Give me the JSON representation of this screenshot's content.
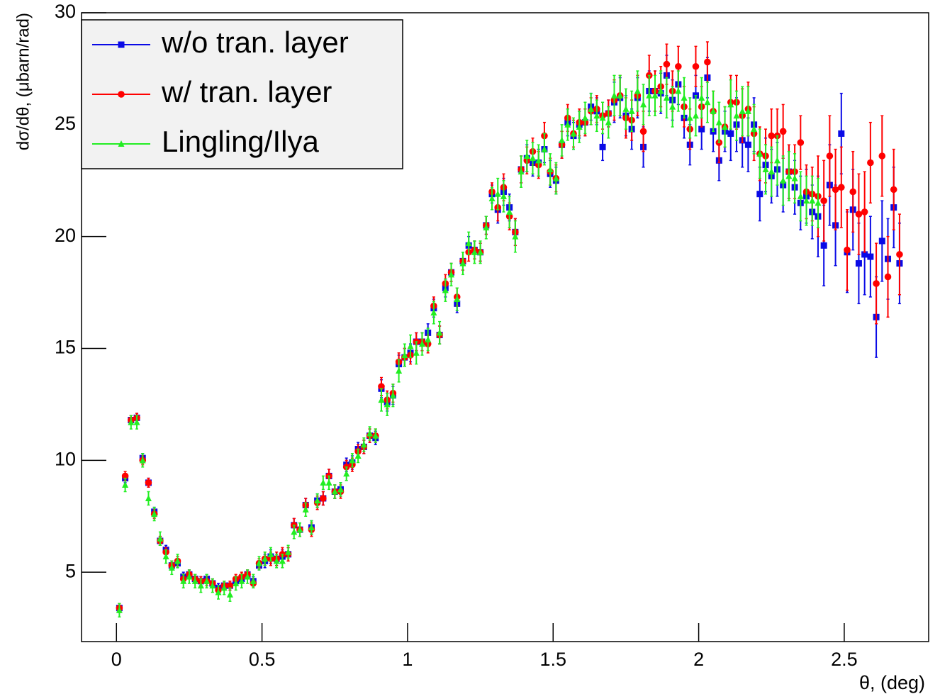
{
  "chart_data": {
    "type": "scatter",
    "x_label": "θ, (deg)",
    "y_label": "dσ/dθ, (μbarn/rad)",
    "xlim": [
      -0.12,
      2.79
    ],
    "ylim": [
      1.9,
      30
    ],
    "xticks": [
      0,
      0.5,
      1,
      1.5,
      2,
      2.5
    ],
    "yticks": [
      5,
      10,
      15,
      20,
      25,
      30
    ],
    "legend": "top-left",
    "x": [
      0.01,
      0.03,
      0.05,
      0.07,
      0.09,
      0.11,
      0.13,
      0.15,
      0.17,
      0.19,
      0.21,
      0.23,
      0.25,
      0.27,
      0.29,
      0.31,
      0.33,
      0.35,
      0.37,
      0.39,
      0.41,
      0.43,
      0.45,
      0.47,
      0.49,
      0.51,
      0.53,
      0.55,
      0.57,
      0.59,
      0.61,
      0.63,
      0.65,
      0.67,
      0.69,
      0.71,
      0.73,
      0.75,
      0.77,
      0.79,
      0.81,
      0.83,
      0.85,
      0.87,
      0.89,
      0.91,
      0.93,
      0.95,
      0.97,
      0.99,
      1.01,
      1.03,
      1.05,
      1.07,
      1.09,
      1.11,
      1.13,
      1.15,
      1.17,
      1.19,
      1.21,
      1.23,
      1.25,
      1.27,
      1.29,
      1.31,
      1.33,
      1.35,
      1.37,
      1.39,
      1.41,
      1.43,
      1.45,
      1.47,
      1.49,
      1.51,
      1.53,
      1.55,
      1.57,
      1.59,
      1.61,
      1.63,
      1.65,
      1.67,
      1.69,
      1.71,
      1.73,
      1.75,
      1.77,
      1.79,
      1.81,
      1.83,
      1.85,
      1.87,
      1.89,
      1.91,
      1.93,
      1.95,
      1.97,
      1.99,
      2.01,
      2.03,
      2.05,
      2.07,
      2.09,
      2.11,
      2.13,
      2.15,
      2.17,
      2.19,
      2.21,
      2.23,
      2.25,
      2.27,
      2.29,
      2.31,
      2.33,
      2.35,
      2.37,
      2.39,
      2.41,
      2.43,
      2.45,
      2.47,
      2.49,
      2.51,
      2.53,
      2.55,
      2.57,
      2.59,
      2.61,
      2.63,
      2.65,
      2.67,
      2.69
    ],
    "series": [
      {
        "name": "w/o tran. layer",
        "color": "#0a0ae6",
        "marker": "square",
        "values": [
          3.4,
          9.2,
          11.8,
          11.9,
          10.1,
          9.0,
          7.7,
          6.4,
          6.0,
          5.3,
          5.4,
          4.8,
          4.9,
          4.7,
          4.6,
          4.7,
          4.5,
          4.3,
          4.4,
          4.4,
          4.6,
          4.7,
          4.9,
          4.6,
          5.3,
          5.5,
          5.7,
          5.6,
          5.7,
          5.8,
          7.1,
          6.9,
          8.0,
          7.0,
          8.2,
          8.3,
          9.3,
          8.6,
          8.7,
          9.8,
          9.9,
          10.5,
          10.6,
          11.1,
          11.0,
          13.2,
          12.6,
          12.9,
          14.3,
          14.6,
          14.8,
          15.3,
          15.3,
          15.7,
          16.8,
          15.6,
          17.7,
          18.4,
          17.0,
          18.9,
          19.6,
          19.4,
          19.3,
          20.5,
          21.9,
          21.2,
          22.0,
          21.3,
          20.2,
          23.0,
          23.5,
          23.3,
          23.3,
          23.9,
          22.8,
          22.5,
          24.1,
          25.1,
          24.5,
          25.0,
          25.1,
          25.8,
          25.6,
          24.0,
          25.5,
          26.0,
          26.2,
          25.4,
          24.8,
          26.2,
          24.0,
          26.5,
          26.5,
          26.4,
          27.2,
          26.1,
          26.8,
          25.3,
          24.1,
          26.3,
          24.8,
          27.1,
          24.7,
          23.4,
          24.7,
          24.6,
          25.0,
          24.3,
          24.1,
          25.0,
          21.9,
          23.2,
          22.7,
          23.0,
          22.3,
          22.9,
          22.2,
          21.5,
          21.8,
          21.1,
          20.9,
          19.6,
          22.3,
          20.5,
          24.6,
          19.3,
          21.2,
          18.8,
          19.2,
          19.1,
          16.4,
          19.8,
          19.0,
          21.3,
          18.8
        ],
        "errors": [
          0.2,
          0.2,
          0.2,
          0.2,
          0.2,
          0.2,
          0.2,
          0.2,
          0.2,
          0.2,
          0.2,
          0.2,
          0.2,
          0.2,
          0.2,
          0.2,
          0.2,
          0.2,
          0.2,
          0.2,
          0.2,
          0.2,
          0.2,
          0.2,
          0.2,
          0.3,
          0.3,
          0.3,
          0.3,
          0.3,
          0.3,
          0.3,
          0.3,
          0.3,
          0.3,
          0.3,
          0.3,
          0.3,
          0.3,
          0.3,
          0.3,
          0.3,
          0.3,
          0.3,
          0.3,
          0.4,
          0.4,
          0.4,
          0.4,
          0.4,
          0.4,
          0.4,
          0.4,
          0.4,
          0.4,
          0.4,
          0.4,
          0.4,
          0.4,
          0.4,
          0.4,
          0.4,
          0.4,
          0.4,
          0.4,
          0.6,
          0.6,
          0.6,
          0.6,
          0.6,
          0.6,
          0.6,
          0.6,
          0.6,
          0.6,
          0.6,
          0.6,
          0.6,
          0.6,
          0.6,
          0.6,
          0.6,
          0.6,
          0.6,
          0.6,
          0.9,
          0.9,
          0.9,
          0.9,
          0.9,
          0.9,
          0.9,
          0.9,
          0.9,
          0.9,
          0.9,
          0.9,
          0.9,
          0.9,
          0.9,
          0.9,
          0.9,
          0.9,
          0.9,
          0.9,
          1.2,
          1.2,
          1.2,
          1.2,
          1.2,
          1.2,
          1.2,
          1.2,
          1.2,
          1.2,
          1.2,
          1.2,
          1.2,
          1.2,
          1.2,
          1.8,
          1.8,
          1.8,
          1.8,
          1.8,
          1.8,
          1.8,
          1.8,
          1.8,
          1.8,
          1.8,
          1.8,
          1.8,
          1.8,
          1.8
        ]
      },
      {
        "name": "w/ tran. layer",
        "color": "#ff0000",
        "marker": "circle",
        "values": [
          3.4,
          9.3,
          11.8,
          11.9,
          10.0,
          9.0,
          7.6,
          6.4,
          5.9,
          5.3,
          5.5,
          4.7,
          4.9,
          4.7,
          4.6,
          4.6,
          4.5,
          4.2,
          4.4,
          4.4,
          4.7,
          4.8,
          4.9,
          4.5,
          5.4,
          5.6,
          5.6,
          5.6,
          5.8,
          5.8,
          7.1,
          6.9,
          8.0,
          6.9,
          8.1,
          8.3,
          9.3,
          8.6,
          8.6,
          9.7,
          9.8,
          10.4,
          10.6,
          11.1,
          11.1,
          13.3,
          12.7,
          13.0,
          14.4,
          14.6,
          14.7,
          15.3,
          15.3,
          15.2,
          16.9,
          15.6,
          17.9,
          18.4,
          17.3,
          18.9,
          19.3,
          19.4,
          19.3,
          20.5,
          22.0,
          21.3,
          22.2,
          20.9,
          20.2,
          23.0,
          23.4,
          23.8,
          23.2,
          24.5,
          22.9,
          22.6,
          24.1,
          25.3,
          24.6,
          25.1,
          25.1,
          25.6,
          25.7,
          25.4,
          25.5,
          26.1,
          26.3,
          25.3,
          25.2,
          26.3,
          24.7,
          27.2,
          26.5,
          26.7,
          27.7,
          26.5,
          27.6,
          25.8,
          24.8,
          27.6,
          25.8,
          27.8,
          25.6,
          24.2,
          24.9,
          26.0,
          26.0,
          25.4,
          25.7,
          24.6,
          23.7,
          23.6,
          24.5,
          24.5,
          24.7,
          22.9,
          22.9,
          24.2,
          22.0,
          21.9,
          21.8,
          21.6,
          23.6,
          22.1,
          22.2,
          19.4,
          22.0,
          21.0,
          21.1,
          23.3,
          17.9,
          23.6,
          18.2,
          22.1,
          19.2
        ],
        "errors": [
          0.2,
          0.2,
          0.2,
          0.2,
          0.2,
          0.2,
          0.2,
          0.2,
          0.2,
          0.2,
          0.2,
          0.2,
          0.2,
          0.2,
          0.2,
          0.2,
          0.2,
          0.2,
          0.2,
          0.2,
          0.2,
          0.2,
          0.2,
          0.2,
          0.2,
          0.3,
          0.3,
          0.3,
          0.3,
          0.3,
          0.3,
          0.3,
          0.3,
          0.3,
          0.3,
          0.3,
          0.3,
          0.3,
          0.3,
          0.3,
          0.3,
          0.3,
          0.3,
          0.3,
          0.3,
          0.4,
          0.4,
          0.4,
          0.4,
          0.4,
          0.4,
          0.4,
          0.4,
          0.4,
          0.4,
          0.4,
          0.4,
          0.4,
          0.4,
          0.4,
          0.4,
          0.4,
          0.4,
          0.4,
          0.4,
          0.6,
          0.6,
          0.6,
          0.6,
          0.6,
          0.6,
          0.6,
          0.6,
          0.6,
          0.6,
          0.6,
          0.6,
          0.6,
          0.6,
          0.6,
          0.6,
          0.6,
          0.6,
          0.6,
          0.6,
          0.9,
          0.9,
          0.9,
          0.9,
          0.9,
          0.9,
          0.9,
          0.9,
          0.9,
          0.9,
          0.9,
          0.9,
          0.9,
          0.9,
          0.9,
          0.9,
          0.9,
          0.9,
          0.9,
          0.9,
          1.2,
          1.2,
          1.2,
          1.2,
          1.2,
          1.2,
          1.2,
          1.2,
          1.2,
          1.2,
          1.2,
          1.2,
          1.2,
          1.2,
          1.2,
          1.8,
          1.8,
          1.8,
          1.8,
          1.8,
          1.8,
          1.8,
          1.8,
          1.8,
          1.8,
          1.8,
          1.8,
          1.8,
          1.8,
          1.8
        ]
      },
      {
        "name": "Lingling/Ilya",
        "color": "#22ee22",
        "marker": "triangle",
        "values": [
          3.3,
          8.9,
          11.7,
          11.7,
          10.0,
          8.3,
          7.6,
          6.5,
          5.7,
          5.2,
          5.5,
          4.6,
          4.8,
          4.6,
          4.4,
          4.6,
          4.4,
          4.1,
          4.3,
          4.0,
          4.5,
          4.6,
          4.8,
          4.6,
          5.4,
          5.6,
          5.8,
          5.5,
          5.5,
          5.9,
          6.8,
          6.9,
          7.8,
          7.0,
          8.2,
          9.0,
          9.0,
          8.6,
          8.7,
          9.4,
          10.0,
          10.2,
          10.7,
          11.2,
          11.1,
          12.7,
          12.5,
          12.9,
          14.0,
          14.7,
          15.1,
          14.8,
          15.2,
          15.4,
          16.6,
          15.7,
          17.6,
          18.3,
          17.2,
          18.8,
          19.7,
          19.3,
          19.3,
          20.4,
          21.7,
          21.9,
          21.8,
          21.1,
          20.0,
          22.9,
          23.6,
          23.5,
          23.4,
          23.9,
          23.0,
          22.6,
          24.3,
          25.0,
          24.6,
          24.9,
          25.3,
          25.7,
          25.4,
          25.3,
          25.1,
          26.3,
          26.3,
          25.7,
          25.6,
          26.5,
          25.9,
          26.3,
          26.3,
          26.5,
          26.2,
          25.8,
          26.5,
          26.2,
          25.3,
          25.4,
          26.2,
          26.0,
          25.6,
          25.1,
          24.9,
          25.9,
          25.4,
          25.6,
          25.6,
          24.8,
          23.7,
          23.0,
          22.9,
          23.4,
          22.5,
          22.7,
          22.6,
          21.8,
          21.6,
          21.6,
          21.5,
          null,
          null,
          null,
          null,
          null,
          null,
          null,
          null,
          null,
          null,
          null,
          null,
          null,
          null
        ],
        "errors": [
          0.3,
          0.3,
          0.3,
          0.3,
          0.3,
          0.3,
          0.3,
          0.3,
          0.3,
          0.3,
          0.3,
          0.3,
          0.3,
          0.3,
          0.3,
          0.3,
          0.3,
          0.3,
          0.3,
          0.3,
          0.3,
          0.3,
          0.3,
          0.3,
          0.3,
          0.3,
          0.3,
          0.3,
          0.3,
          0.3,
          0.3,
          0.3,
          0.3,
          0.3,
          0.3,
          0.3,
          0.3,
          0.3,
          0.3,
          0.3,
          0.3,
          0.3,
          0.3,
          0.3,
          0.3,
          0.5,
          0.5,
          0.5,
          0.5,
          0.5,
          0.5,
          0.5,
          0.5,
          0.5,
          0.5,
          0.5,
          0.5,
          0.5,
          0.5,
          0.5,
          0.5,
          0.5,
          0.5,
          0.5,
          0.5,
          0.7,
          0.7,
          0.7,
          0.7,
          0.7,
          0.7,
          0.7,
          0.7,
          0.7,
          0.7,
          0.7,
          0.7,
          0.7,
          0.7,
          0.7,
          0.7,
          0.7,
          0.7,
          0.7,
          0.7,
          0.9,
          0.9,
          0.9,
          0.9,
          0.9,
          0.9,
          0.9,
          0.9,
          0.9,
          0.9,
          0.9,
          0.9,
          0.9,
          0.9,
          0.9,
          0.9,
          0.9,
          0.9,
          0.9,
          0.9,
          1.1,
          1.1,
          1.1,
          1.1,
          1.1,
          1.1,
          1.1,
          1.1,
          1.1,
          1.1,
          1.1,
          1.1,
          1.1,
          1.1,
          1.1,
          1.1,
          null,
          null,
          null,
          null,
          null,
          null,
          null,
          null,
          null,
          null,
          null,
          null,
          null,
          null
        ]
      }
    ]
  }
}
